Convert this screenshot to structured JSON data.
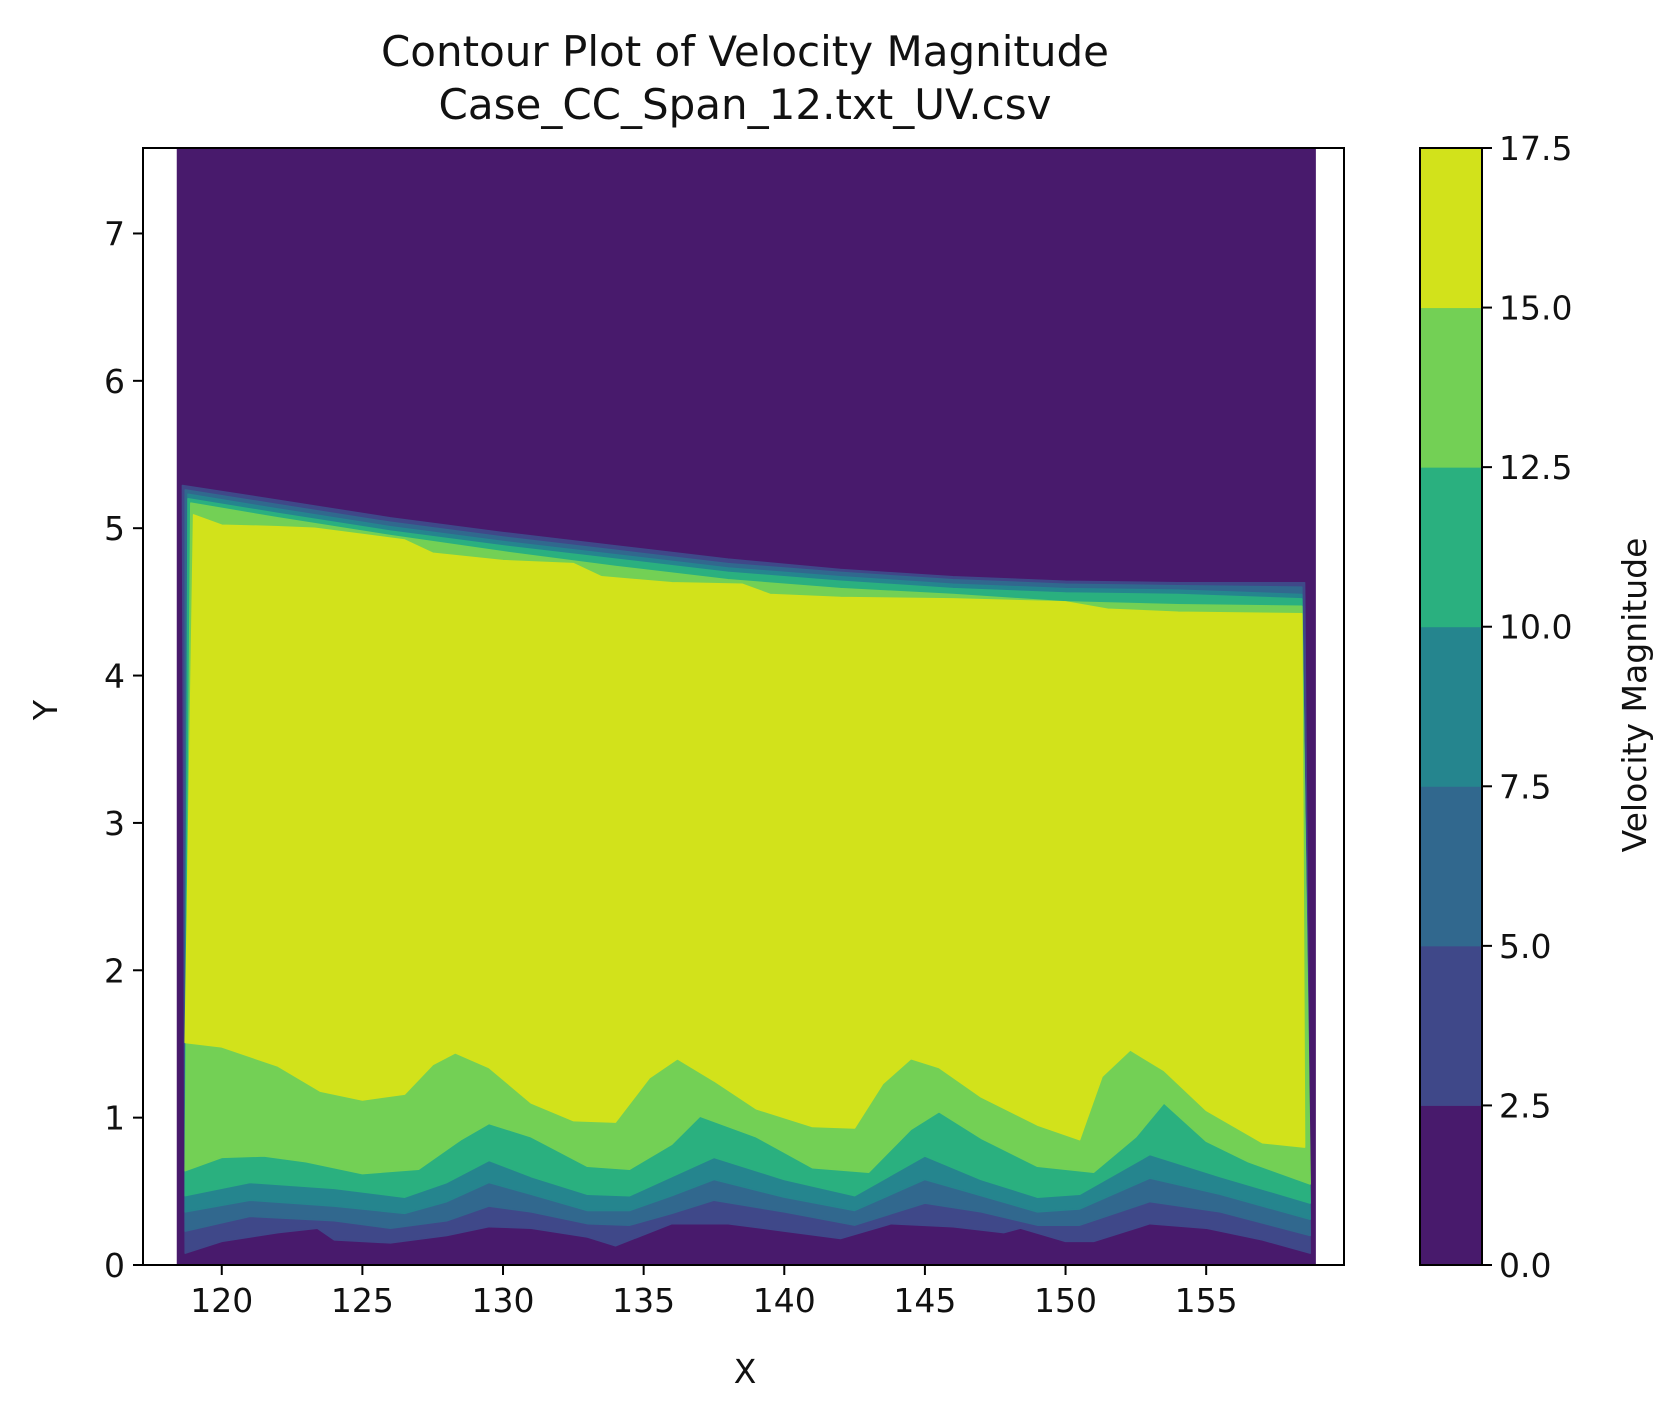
{
  "chart_data": {
    "type": "heatmap",
    "subtype": "filled-contour",
    "title": "Contour Plot of Velocity Magnitude",
    "subtitle": "Case_CC_Span_12.txt_UV.csv",
    "xlabel": "X",
    "ylabel": "Y",
    "xlim": [
      117.2,
      159.9
    ],
    "ylim": [
      0,
      7.58
    ],
    "x_domain": [
      118.4,
      158.9
    ],
    "xticks": [
      120,
      125,
      130,
      135,
      140,
      145,
      150,
      155
    ],
    "yticks": [
      0,
      1,
      2,
      3,
      4,
      5,
      6,
      7
    ],
    "colorbar": {
      "label": "Velocity Magnitude",
      "levels": [
        0.0,
        2.5,
        5.0,
        7.5,
        10.0,
        12.5,
        15.0,
        17.5
      ],
      "tick_labels": [
        "0.0",
        "2.5",
        "5.0",
        "7.5",
        "10.0",
        "12.5",
        "15.0",
        "17.5"
      ],
      "colors": [
        "#481a6c",
        "#3f4889",
        "#31688e",
        "#25858e",
        "#2ab07f",
        "#73d055",
        "#d2e21b"
      ]
    },
    "contour_boundaries": [
      {
        "level": 2.5,
        "top_x": [
          118.6,
          122,
          126,
          130,
          134,
          138,
          142,
          146,
          150,
          154,
          158.5
        ],
        "top_y": [
          5.29,
          5.19,
          5.07,
          4.97,
          4.88,
          4.79,
          4.72,
          4.67,
          4.64,
          4.63,
          4.63
        ],
        "bottom_x": [
          118.7,
          120,
          122,
          123.4,
          124,
          126,
          128,
          129.5,
          131,
          133,
          134,
          136,
          138,
          140,
          142,
          143.8,
          146,
          147.8,
          148.4,
          150,
          151,
          153,
          155,
          157,
          158.7
        ],
        "bottom_y": [
          0.08,
          0.16,
          0.22,
          0.25,
          0.17,
          0.15,
          0.2,
          0.26,
          0.25,
          0.19,
          0.13,
          0.28,
          0.28,
          0.23,
          0.18,
          0.28,
          0.26,
          0.22,
          0.25,
          0.16,
          0.16,
          0.28,
          0.25,
          0.17,
          0.08
        ]
      },
      {
        "level": 5.0,
        "top_x": [
          118.7,
          122,
          126,
          130,
          134,
          138,
          142,
          146,
          150,
          154,
          158.4
        ],
        "top_y": [
          5.26,
          5.16,
          5.04,
          4.94,
          4.85,
          4.76,
          4.7,
          4.65,
          4.62,
          4.61,
          4.6
        ],
        "bottom_x": [
          118.7,
          121,
          124,
          126,
          128,
          129.5,
          131,
          133,
          134.5,
          136,
          137.5,
          140,
          142.5,
          145,
          147,
          149,
          150.5,
          153,
          155.5,
          158.7
        ],
        "bottom_y": [
          0.23,
          0.33,
          0.3,
          0.25,
          0.3,
          0.4,
          0.36,
          0.28,
          0.27,
          0.35,
          0.44,
          0.36,
          0.27,
          0.42,
          0.36,
          0.27,
          0.27,
          0.43,
          0.36,
          0.2
        ]
      },
      {
        "level": 7.5,
        "top_x": [
          118.8,
          122,
          126,
          130,
          134,
          138,
          142,
          146,
          150,
          154,
          158.4
        ],
        "top_y": [
          5.23,
          5.13,
          5.01,
          4.91,
          4.82,
          4.73,
          4.67,
          4.62,
          4.59,
          4.58,
          4.55
        ],
        "bottom_x": [
          118.7,
          121,
          124,
          126.5,
          128,
          129.5,
          131,
          133,
          134.5,
          136,
          137.5,
          140,
          142.5,
          145,
          147,
          149,
          150.5,
          153,
          155.5,
          158.7
        ],
        "bottom_y": [
          0.36,
          0.44,
          0.4,
          0.35,
          0.43,
          0.56,
          0.48,
          0.37,
          0.37,
          0.47,
          0.58,
          0.46,
          0.37,
          0.58,
          0.47,
          0.36,
          0.38,
          0.59,
          0.48,
          0.31
        ]
      },
      {
        "level": 10.0,
        "top_x": [
          118.8,
          122,
          126,
          130,
          134,
          138,
          142,
          146,
          150,
          154,
          158.4
        ],
        "top_y": [
          5.2,
          5.1,
          4.98,
          4.88,
          4.79,
          4.7,
          4.64,
          4.59,
          4.56,
          4.55,
          4.52
        ],
        "bottom_x": [
          118.7,
          121,
          124,
          126.5,
          128,
          129.5,
          131,
          133,
          134.5,
          136,
          137.5,
          140,
          142.5,
          145,
          147,
          149,
          150.5,
          153,
          155.5,
          158.7
        ],
        "bottom_y": [
          0.47,
          0.56,
          0.52,
          0.46,
          0.56,
          0.71,
          0.6,
          0.48,
          0.47,
          0.6,
          0.73,
          0.58,
          0.47,
          0.74,
          0.58,
          0.46,
          0.48,
          0.75,
          0.6,
          0.42
        ]
      },
      {
        "level": 12.5,
        "top_x": [
          118.9,
          122,
          126,
          130,
          134,
          138,
          142,
          146,
          150,
          154,
          158.4
        ],
        "top_y": [
          5.17,
          5.07,
          4.95,
          4.84,
          4.74,
          4.65,
          4.59,
          4.55,
          4.5,
          4.48,
          4.47
        ],
        "bottom_x": [
          118.7,
          120,
          121.5,
          123,
          125,
          127,
          128.5,
          129.5,
          131,
          133,
          134.5,
          136,
          137,
          139,
          141,
          143,
          144.5,
          145.5,
          147,
          149,
          151,
          152.5,
          153.5,
          155,
          156.5,
          158.7
        ],
        "bottom_y": [
          0.64,
          0.73,
          0.74,
          0.7,
          0.62,
          0.65,
          0.85,
          0.96,
          0.87,
          0.67,
          0.65,
          0.82,
          1.01,
          0.87,
          0.66,
          0.63,
          0.92,
          1.04,
          0.86,
          0.67,
          0.63,
          0.87,
          1.1,
          0.84,
          0.7,
          0.55
        ]
      },
      {
        "level": 15.0,
        "top_x": [
          119.0,
          120,
          122,
          123.3,
          126.5,
          127.5,
          130,
          132.5,
          133.5,
          136,
          138.5,
          139.5,
          142,
          146,
          150,
          151.5,
          154,
          158.4
        ],
        "top_y": [
          5.09,
          5.02,
          5.01,
          5.0,
          4.92,
          4.83,
          4.78,
          4.76,
          4.67,
          4.63,
          4.62,
          4.55,
          4.53,
          4.52,
          4.5,
          4.45,
          4.43,
          4.42
        ],
        "bottom_x": [
          118.7,
          120,
          122,
          123.5,
          125,
          126.5,
          127.5,
          128.3,
          129.5,
          131,
          132.5,
          134,
          135.2,
          136.2,
          137.5,
          139,
          141,
          142.5,
          143.5,
          144.5,
          145.5,
          147,
          149,
          150.5,
          151.3,
          152.3,
          153.5,
          155,
          157,
          158.5
        ],
        "bottom_y": [
          1.51,
          1.48,
          1.35,
          1.18,
          1.12,
          1.16,
          1.36,
          1.44,
          1.34,
          1.1,
          0.98,
          0.97,
          1.27,
          1.4,
          1.25,
          1.06,
          0.94,
          0.93,
          1.23,
          1.4,
          1.34,
          1.14,
          0.95,
          0.85,
          1.28,
          1.46,
          1.32,
          1.05,
          0.83,
          0.8
        ]
      }
    ]
  }
}
